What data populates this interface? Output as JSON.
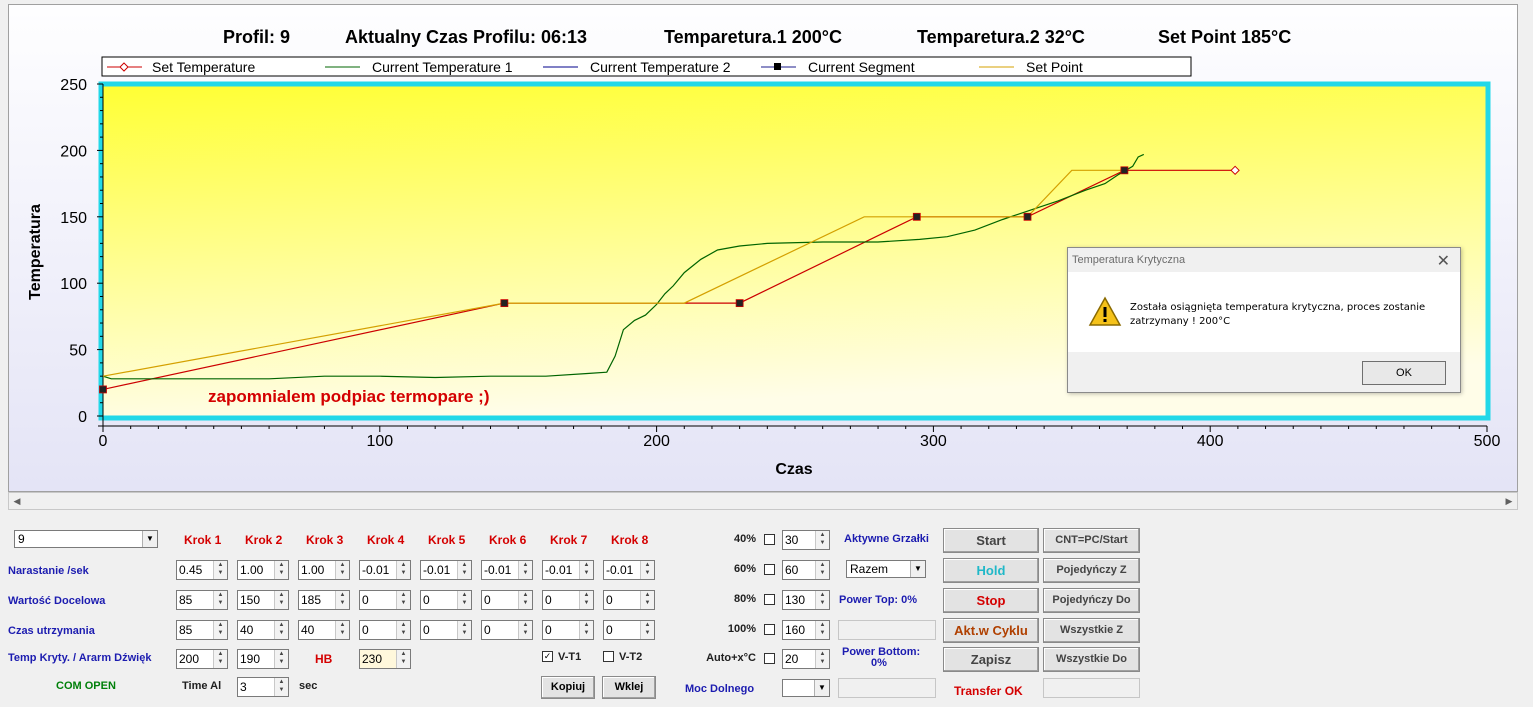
{
  "header": {
    "profil": "Profil: 9",
    "czas": "Aktualny Czas Profilu: 06:13",
    "temp1": "Temparetura.1  200°C",
    "temp2": "Temparetura.2  32°C",
    "setpoint": "Set Point 185°C"
  },
  "legend": {
    "items": [
      "Set Temperature",
      "Current Temperature 1",
      "Current Temperature 2",
      "Current Segment",
      "Set Point"
    ]
  },
  "annotation": "zapomnialem podpiac termopare ;)",
  "chart_data": {
    "type": "line",
    "xlabel": "Czas",
    "ylabel": "Temperatura",
    "xlim": [
      0,
      500
    ],
    "ylim": [
      0,
      250
    ],
    "xticks": [
      "0",
      "100",
      "200",
      "300",
      "400",
      "500"
    ],
    "yticks": [
      "0",
      "50",
      "100",
      "150",
      "200",
      "250"
    ],
    "grid": false,
    "legend_position": "top",
    "series": [
      {
        "name": "Set Temperature",
        "color": "#cc0000",
        "points": [
          [
            0,
            20
          ],
          [
            145,
            85
          ],
          [
            230,
            85
          ],
          [
            294,
            150
          ],
          [
            334,
            150
          ],
          [
            369,
            185
          ],
          [
            409,
            185
          ]
        ]
      },
      {
        "name": "Current Temperature 1",
        "color": "#006400",
        "points": [
          [
            0,
            30
          ],
          [
            3,
            28
          ],
          [
            30,
            28
          ],
          [
            60,
            28
          ],
          [
            80,
            30
          ],
          [
            100,
            30
          ],
          [
            120,
            29
          ],
          [
            140,
            30
          ],
          [
            160,
            30
          ],
          [
            175,
            32
          ],
          [
            182,
            33
          ],
          [
            185,
            45
          ],
          [
            188,
            65
          ],
          [
            192,
            72
          ],
          [
            196,
            76
          ],
          [
            200,
            84
          ],
          [
            203,
            92
          ],
          [
            206,
            98
          ],
          [
            210,
            108
          ],
          [
            216,
            118
          ],
          [
            222,
            125
          ],
          [
            230,
            128
          ],
          [
            240,
            130
          ],
          [
            260,
            131
          ],
          [
            280,
            131
          ],
          [
            295,
            133
          ],
          [
            305,
            135
          ],
          [
            315,
            140
          ],
          [
            325,
            148
          ],
          [
            335,
            155
          ],
          [
            345,
            162
          ],
          [
            355,
            170
          ],
          [
            362,
            175
          ],
          [
            367,
            182
          ],
          [
            372,
            188
          ],
          [
            374,
            195
          ],
          [
            376,
            197
          ]
        ]
      },
      {
        "name": "Current Temperature 2",
        "color": "#00008b",
        "points": []
      },
      {
        "name": "Set Point",
        "color": "#d4a000",
        "points": [
          [
            0,
            30
          ],
          [
            145,
            85
          ],
          [
            210,
            85
          ],
          [
            275,
            150
          ],
          [
            294,
            150
          ],
          [
            334,
            150
          ],
          [
            350,
            185
          ],
          [
            369,
            185
          ]
        ]
      }
    ],
    "current_segment": [
      [
        0,
        20
      ],
      [
        145,
        85
      ],
      [
        230,
        85
      ],
      [
        294,
        150
      ],
      [
        334,
        150
      ],
      [
        369,
        185
      ]
    ]
  },
  "dialog": {
    "title": "Temperatura Krytyczna",
    "message": "Została osiągnięta temperatura krytyczna, proces zostanie zatrzymany !   200°C",
    "ok": "OK",
    "close": "✕"
  },
  "profile_select": "9",
  "krok_headers": [
    "Krok 1",
    "Krok 2",
    "Krok 3",
    "Krok 4",
    "Krok 5",
    "Krok 6",
    "Krok 7",
    "Krok 8"
  ],
  "rows": [
    {
      "label": "Narastanie /sek",
      "values": [
        "0.45",
        "1.00",
        "1.00",
        "-0.01",
        "-0.01",
        "-0.01",
        "-0.01",
        "-0.01"
      ]
    },
    {
      "label": "Wartość Docelowa",
      "values": [
        "85",
        "150",
        "185",
        "0",
        "0",
        "0",
        "0",
        "0"
      ]
    },
    {
      "label": "Czas utrzymania",
      "values": [
        "85",
        "40",
        "40",
        "0",
        "0",
        "0",
        "0",
        "0"
      ]
    }
  ],
  "temp_kryt": {
    "label": "Temp Kryty. / Ararm Dźwięk",
    "v1": "200",
    "v2": "190",
    "hb_label": "HB",
    "hb": "230"
  },
  "com": "COM OPEN",
  "time_al": {
    "label": "Time Al",
    "value": "3",
    "unit": "sec"
  },
  "vt": {
    "vt1": "V-T1",
    "vt2": "V-T2",
    "vt1_checked": true,
    "vt2_checked": false
  },
  "buttons_mid": {
    "kopiuj": "Kopiuj",
    "wklej": "Wklej"
  },
  "heaters": [
    {
      "pct": "40%",
      "value": "30"
    },
    {
      "pct": "60%",
      "value": "60"
    },
    {
      "pct": "80%",
      "value": "130"
    },
    {
      "pct": "100%",
      "value": "160"
    },
    {
      "pct": "Auto+x°C",
      "value": "20"
    }
  ],
  "aktywne": "Aktywne Grzałki",
  "razem": "Razem",
  "power_top": "Power Top: 0%",
  "power_bottom_1": "Power Bottom:",
  "power_bottom_2": "0%",
  "moc_dolnego": "Moc Dolnego",
  "actions": {
    "start": "Start",
    "hold": "Hold",
    "stop": "Stop",
    "akt": "Akt.w Cyklu",
    "zapisz": "Zapisz",
    "transfer": "Transfer OK",
    "cnt": "CNT=PC/Start",
    "poj_z": "Pojedyńczy Z",
    "poj_do": "Pojedyńczy Do",
    "wsz_z": "Wszystkie Z",
    "wsz_do": "Wszystkie Do"
  },
  "colors": {
    "hold": "#20b8c8",
    "stop": "#d40000",
    "akt": "#b04000",
    "plot_top": "#ffff33",
    "plot_bottom": "#fffde0",
    "plot_border": "#22d8e8"
  }
}
